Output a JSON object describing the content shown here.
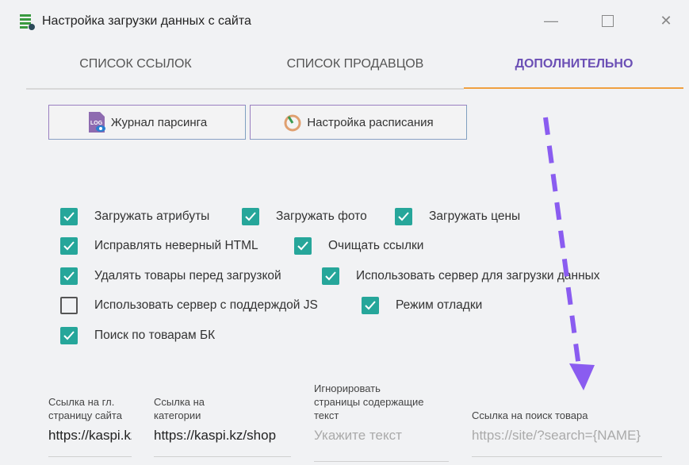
{
  "window": {
    "title": "Настройка загрузки данных с сайта",
    "icon": "database-gear-icon"
  },
  "tabs": [
    {
      "label": "СПИСОК ССЫЛОК",
      "active": false
    },
    {
      "label": "СПИСОК ПРОДАВЦОВ",
      "active": false
    },
    {
      "label": "ДОПОЛНИТЕЛЬНО",
      "active": true
    }
  ],
  "buttons": {
    "log": "Журнал парсинга",
    "schedule": "Настройка расписания"
  },
  "checkboxes": [
    {
      "label": "Загружать атрибуты",
      "checked": true
    },
    {
      "label": "Загружать фото",
      "checked": true
    },
    {
      "label": "Загружать цены",
      "checked": true
    },
    {
      "label": "Исправлять неверный HTML",
      "checked": true
    },
    {
      "label": "Очищать ссылки",
      "checked": true
    },
    {
      "label": "Удалять товары перед загрузкой",
      "checked": true
    },
    {
      "label": "Использовать сервер для загрузки данных",
      "checked": true
    },
    {
      "label": "Использовать сервер с поддерждой JS",
      "checked": false
    },
    {
      "label": "Режим отладки",
      "checked": true
    },
    {
      "label": "Поиск по товарам БК",
      "checked": true
    }
  ],
  "fields": [
    {
      "label": "Ссылка на гл. страницу сайта",
      "value": "https://kaspi.kz"
    },
    {
      "label": "Ссылка на категории",
      "value": "https://kaspi.kz/shop"
    },
    {
      "label": "Игнорировать страницы содержащие текст",
      "placeholder": "Укажите текст"
    },
    {
      "label": "Ссылка на поиск товара",
      "placeholder": "https://site/?search={NAME}"
    }
  ],
  "colors": {
    "accent": "#6b4fb5",
    "checkbox": "#26a69a",
    "tab_indicator": "#f0a040",
    "annotation_arrow": "#8a5cf0"
  }
}
